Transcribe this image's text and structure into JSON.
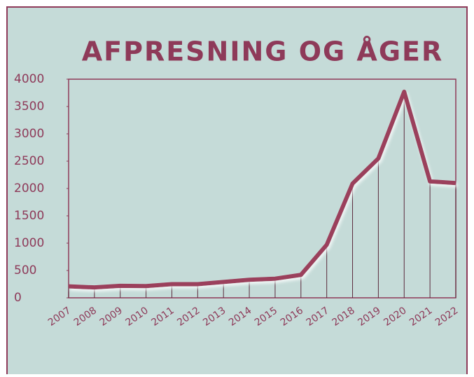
{
  "chart_data": {
    "type": "line",
    "title": "AFPRESNING OG ÅGER",
    "categories": [
      "2007",
      "2008",
      "2009",
      "2010",
      "2011",
      "2012",
      "2013",
      "2014",
      "2015",
      "2016",
      "2017",
      "2018",
      "2019",
      "2020",
      "2021",
      "2022"
    ],
    "values": [
      210,
      190,
      220,
      215,
      250,
      250,
      290,
      330,
      350,
      420,
      970,
      2090,
      2550,
      3770,
      2130,
      2100
    ],
    "color": "#9b3f5c",
    "ylim": [
      0,
      4000
    ],
    "yticks": [
      0,
      500,
      1000,
      1500,
      2000,
      2500,
      3000,
      3500,
      4000
    ],
    "drop_lines": true
  }
}
